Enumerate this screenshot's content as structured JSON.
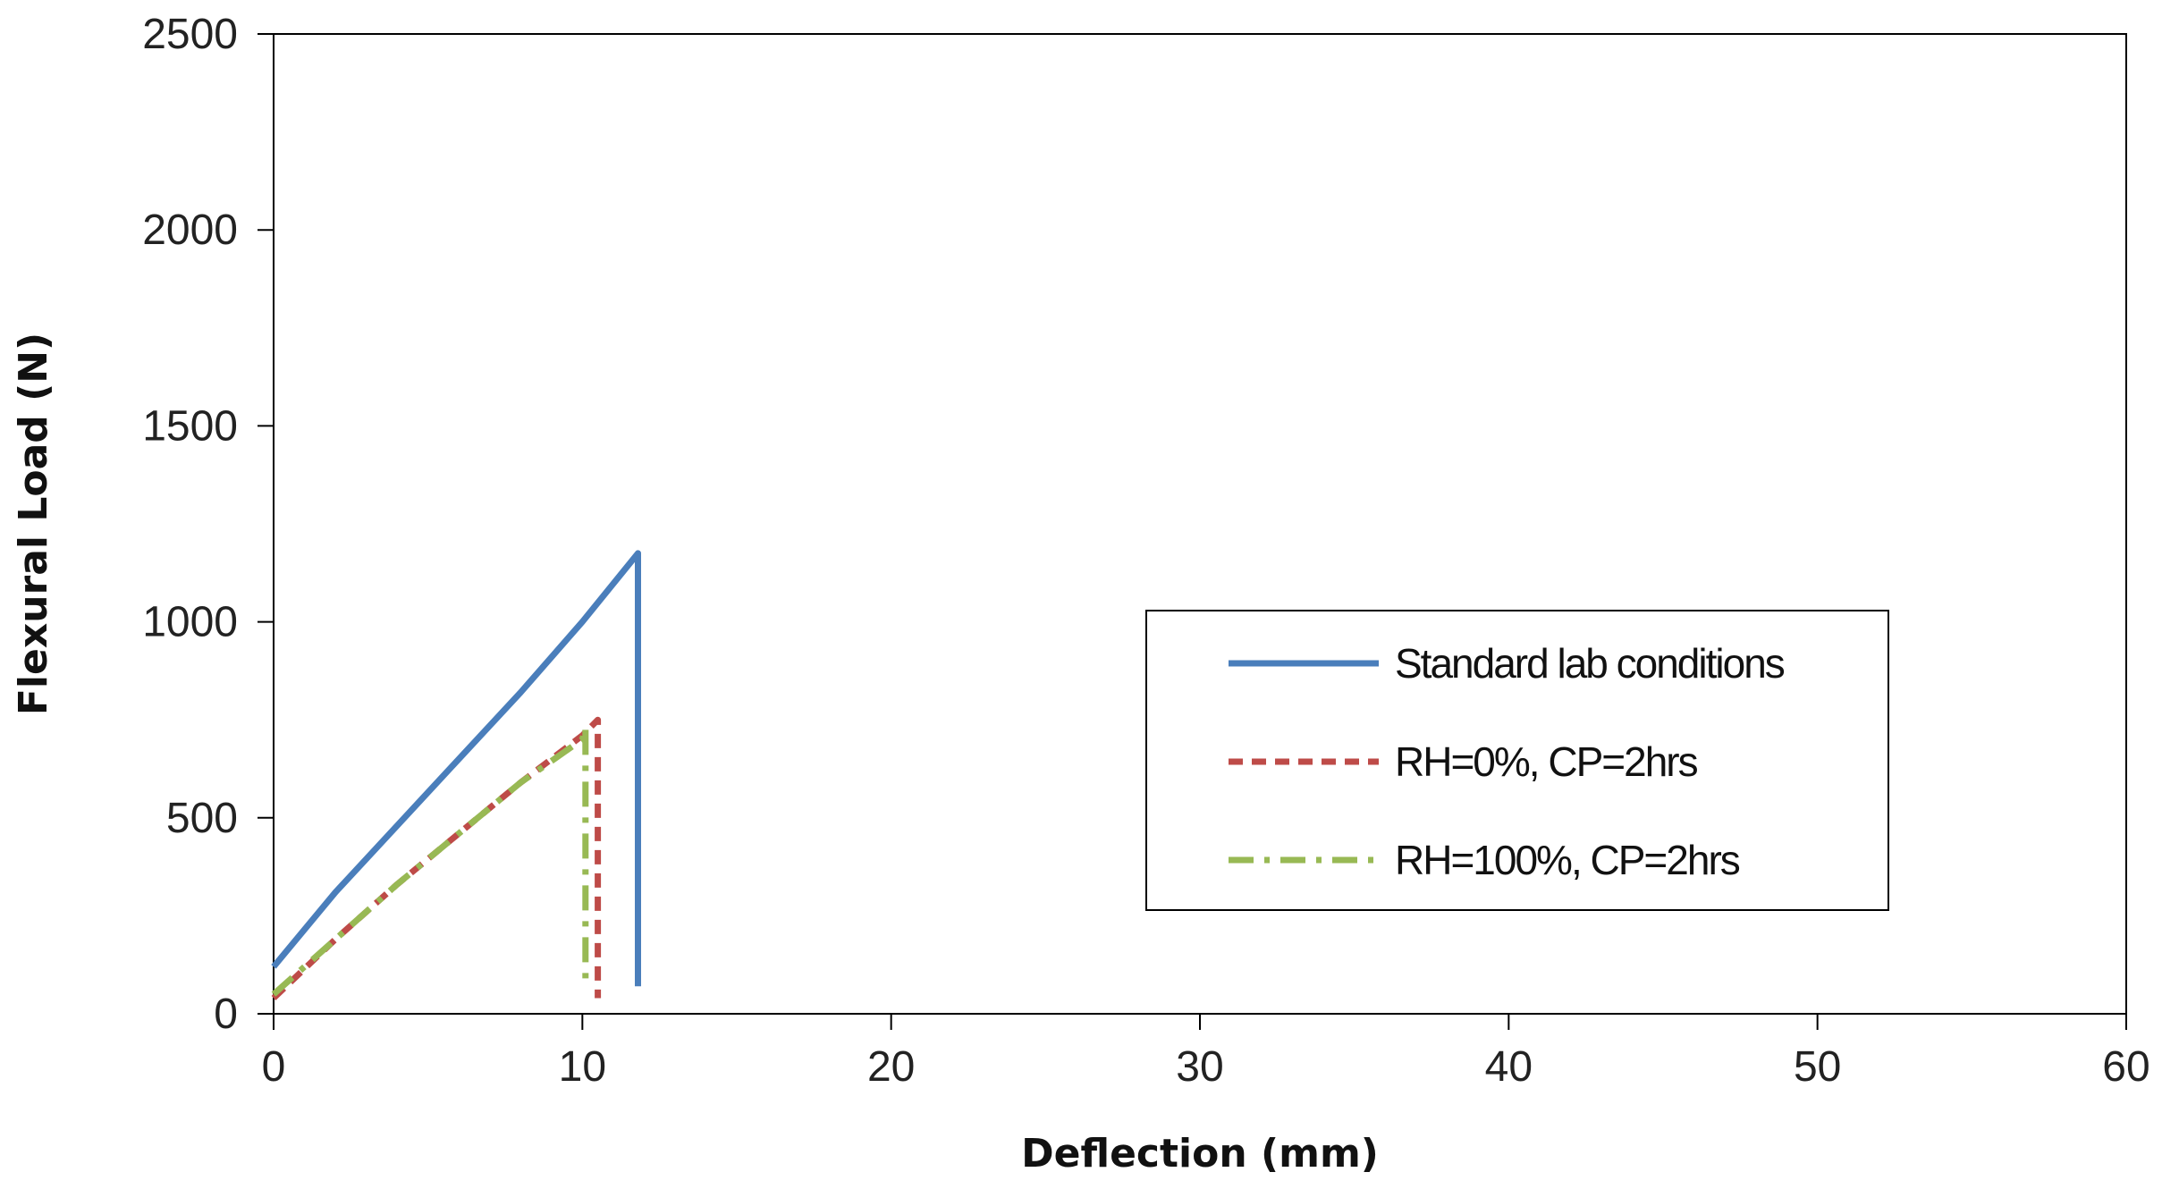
{
  "chart_data": {
    "type": "line",
    "title": "",
    "xlabel": "Deflection (mm)",
    "ylabel": "Flexural Load (N)",
    "xlim": [
      0,
      60
    ],
    "ylim": [
      0,
      2500
    ],
    "xticks": [
      "0",
      "10",
      "20",
      "30",
      "40",
      "50",
      "60"
    ],
    "yticks": [
      "0",
      "500",
      "1000",
      "1500",
      "2000",
      "2500"
    ],
    "grid": false,
    "legend_position": "center-right",
    "series": [
      {
        "name": "Standard lab conditions",
        "color": "#4A7EBB",
        "style": "solid",
        "x": [
          0,
          2,
          4,
          6,
          8,
          10,
          11.8,
          11.8,
          11.8
        ],
        "y": [
          120,
          310,
          480,
          650,
          820,
          1000,
          1175,
          600,
          70
        ]
      },
      {
        "name": "RH=0%, CP=2hrs",
        "color": "#BE4B48",
        "style": "dashed",
        "x": [
          0,
          2,
          4,
          6,
          8,
          10,
          10.5,
          10.5,
          10.5
        ],
        "y": [
          40,
          190,
          330,
          460,
          590,
          710,
          750,
          400,
          40
        ]
      },
      {
        "name": "RH=100%, CP=2hrs",
        "color": "#98B954",
        "style": "dashdot",
        "x": [
          0,
          2,
          4,
          6,
          8,
          10,
          10.1,
          10.1
        ],
        "y": [
          50,
          190,
          330,
          460,
          590,
          700,
          730,
          80
        ]
      }
    ]
  }
}
